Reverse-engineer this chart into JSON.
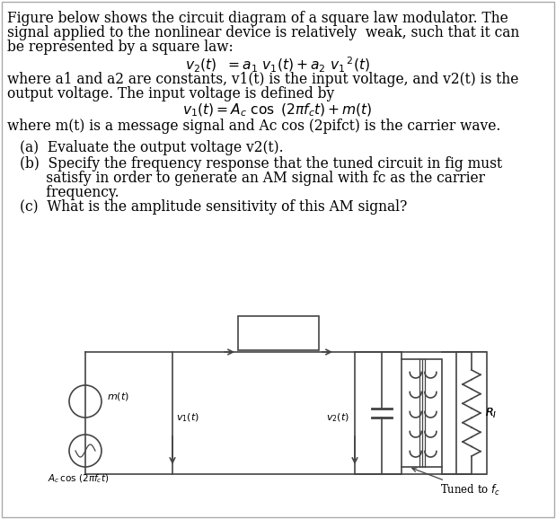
{
  "bg_color": "#ffffff",
  "text_color": "#000000",
  "circuit_color": "#444444",
  "line1": "Figure below shows the circuit diagram of a square law modulator. The",
  "line2": "signal applied to the nonlinear device is relatively  weak, such that it can",
  "line3": "be represented by a square law:",
  "line5": "where a1 and a2 are constants, v1(t) is the input voltage, and v2(t) is the",
  "line6": "output voltage. The input voltage is defined by",
  "line8": "where m(t) is a message signal and Ac cos (2pifct) is the carrier wave.",
  "qa": "(a)  Evaluate the output voltage v2(t).",
  "qb1": "(b)  Specify the frequency response that the tuned circuit in fig must",
  "qb2": "      satisfy in order to generate an AM signal with fc as the carrier",
  "qb3": "      frequency.",
  "qc": "(c)  What is the amplitude sensitivity of this AM signal?"
}
